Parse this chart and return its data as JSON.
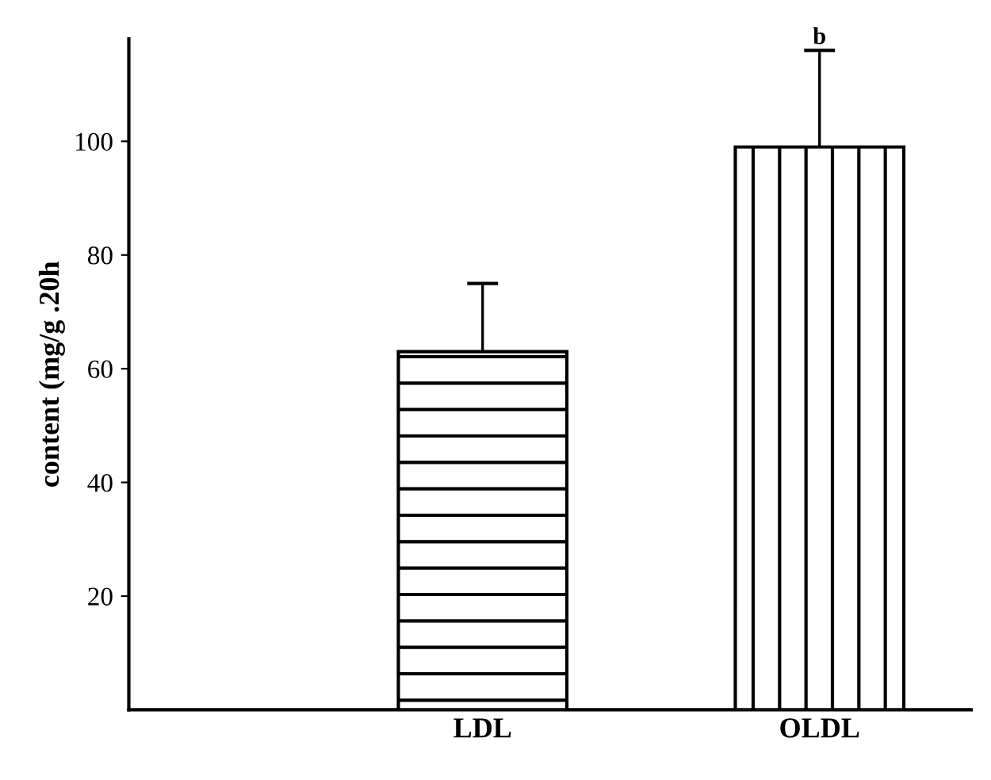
{
  "chart_data": {
    "type": "bar",
    "ylabel": "content (mg/g .20h",
    "categories": [
      "LDL",
      "OLDL"
    ],
    "values": [
      63,
      99
    ],
    "errors": [
      12,
      17
    ],
    "ylim": [
      0,
      118
    ],
    "yticks": [
      20,
      40,
      60,
      80,
      100
    ],
    "grid": false,
    "annotations": [
      "b"
    ]
  }
}
